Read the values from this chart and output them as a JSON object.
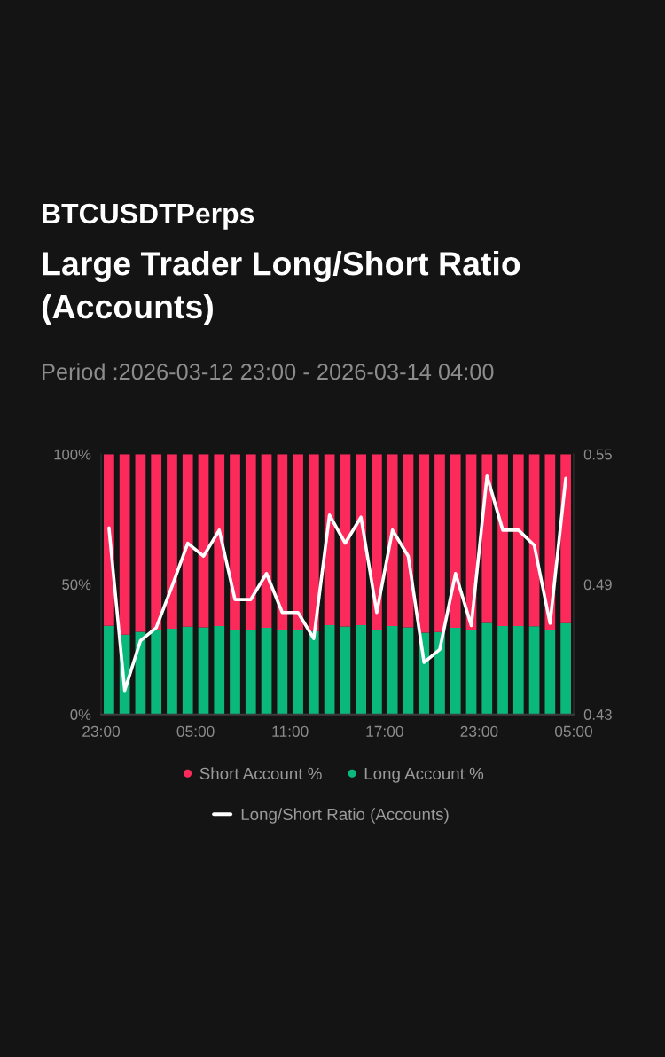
{
  "chart_data": {
    "type": "bar",
    "stacked": true,
    "annotations": [
      "BTCUSDTPerps"
    ],
    "title": "Large Trader Long/Short Ratio (Accounts)",
    "subtitle": "Period :2026-03-12 23:00 - 2026-03-14 04:00",
    "x": [
      "2026-03-12T23:30",
      "2026-03-13T00:30",
      "2026-03-13T01:30",
      "2026-03-13T02:30",
      "2026-03-13T03:30",
      "2026-03-13T04:30",
      "2026-03-13T05:30",
      "2026-03-13T06:30",
      "2026-03-13T07:30",
      "2026-03-13T08:30",
      "2026-03-13T09:30",
      "2026-03-13T10:30",
      "2026-03-13T11:30",
      "2026-03-13T12:30",
      "2026-03-13T13:30",
      "2026-03-13T14:30",
      "2026-03-13T15:30",
      "2026-03-13T16:30",
      "2026-03-13T17:30",
      "2026-03-13T18:30",
      "2026-03-13T19:30",
      "2026-03-13T20:30",
      "2026-03-13T21:30",
      "2026-03-13T22:30",
      "2026-03-13T23:30",
      "2026-03-14T00:30",
      "2026-03-14T01:30",
      "2026-03-14T02:30",
      "2026-03-14T03:30",
      "2026-03-14T04:30"
    ],
    "xlim": [
      "2026-03-12T23:00",
      "2026-03-14T05:00"
    ],
    "xticks": [
      {
        "value": "2026-03-12T23:00",
        "label": "23:00"
      },
      {
        "value": "2026-03-13T05:00",
        "label": "05:00"
      },
      {
        "value": "2026-03-13T11:00",
        "label": "11:00"
      },
      {
        "value": "2026-03-13T17:00",
        "label": "17:00"
      },
      {
        "value": "2026-03-13T23:00",
        "label": "23:00"
      },
      {
        "value": "2026-03-14T05:00",
        "label": "05:00"
      }
    ],
    "ylim": [
      0,
      100
    ],
    "yticks": [
      {
        "value": 0,
        "label": "0%"
      },
      {
        "value": 50,
        "label": "50%"
      },
      {
        "value": 100,
        "label": "100%"
      }
    ],
    "y2lim": [
      0.43,
      0.55
    ],
    "y2ticks": [
      0.43,
      0.49,
      0.55
    ],
    "legend": "bottom",
    "series": [
      {
        "name": "Long Account %",
        "color": "#0bb87b",
        "values": [
          34.1,
          30.7,
          31.8,
          32.3,
          33.0,
          33.7,
          33.5,
          34.0,
          32.6,
          32.6,
          33.3,
          32.4,
          32.4,
          32.0,
          34.3,
          33.8,
          34.3,
          32.5,
          34.0,
          33.5,
          31.4,
          31.7,
          33.3,
          32.4,
          35.2,
          34.0,
          34.0,
          33.9,
          32.4,
          35.1
        ]
      },
      {
        "name": "Short Account %",
        "color": "#fb2a5a",
        "values": [
          65.9,
          69.3,
          68.2,
          67.7,
          67.0,
          66.3,
          66.5,
          66.0,
          67.4,
          67.4,
          66.7,
          67.6,
          67.6,
          68.0,
          65.7,
          66.2,
          65.7,
          67.5,
          66.0,
          66.5,
          68.6,
          68.3,
          66.7,
          67.6,
          64.8,
          66.0,
          66.0,
          66.1,
          67.6,
          64.9
        ]
      },
      {
        "name": "Long/Short Ratio (Accounts)",
        "type": "line",
        "axis": "y2",
        "color": "#ffffff",
        "values": [
          0.516,
          0.441,
          0.464,
          0.47,
          0.489,
          0.509,
          0.503,
          0.515,
          0.483,
          0.483,
          0.495,
          0.477,
          0.477,
          0.465,
          0.522,
          0.509,
          0.521,
          0.477,
          0.515,
          0.503,
          0.454,
          0.46,
          0.495,
          0.471,
          0.54,
          0.515,
          0.515,
          0.508,
          0.472,
          0.539
        ]
      }
    ]
  }
}
